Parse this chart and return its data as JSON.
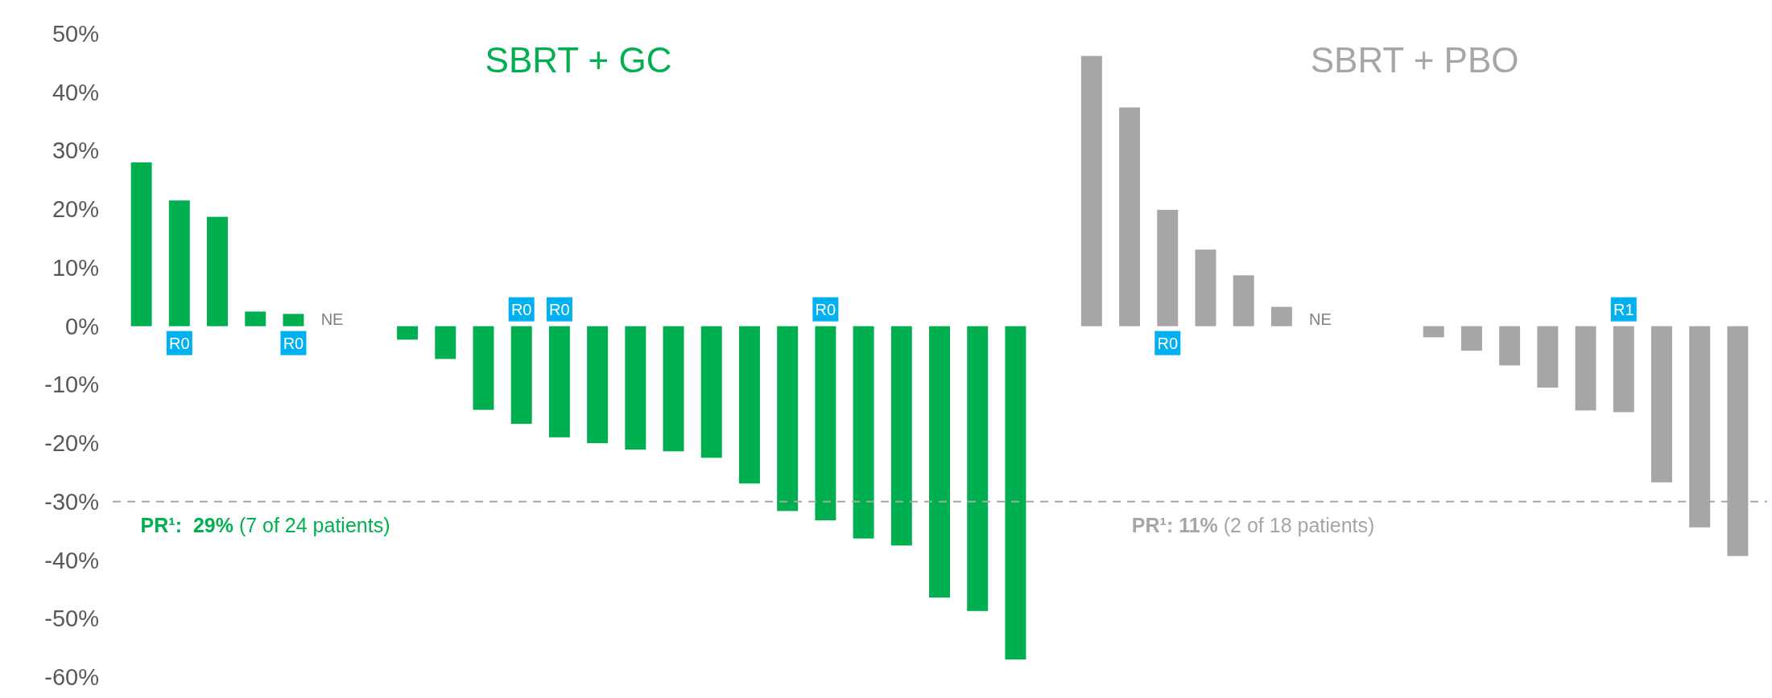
{
  "chart_data": {
    "type": "bar",
    "categories": [
      null,
      null,
      null,
      null,
      null,
      null,
      null,
      null,
      null,
      null,
      null,
      null,
      null,
      null,
      null,
      null,
      null,
      null,
      null,
      null,
      null,
      null,
      null,
      null,
      null,
      null,
      null,
      null,
      null,
      null,
      null,
      null,
      null,
      null,
      null,
      null,
      null,
      null,
      null,
      null,
      null,
      null,
      null
    ],
    "series": [
      {
        "name": "SBRT + GC",
        "color": "#00b050",
        "values": [
          28,
          21.5,
          18.7,
          2.5,
          2.1,
          null,
          null,
          -2.3,
          -5.6,
          -14.3,
          -16.7,
          -19,
          -20,
          -21.1,
          -21.4,
          -22.5,
          -26.9,
          -31.6,
          -33.2,
          -36.3,
          -37.5,
          -46.4,
          -48.7,
          -57,
          null,
          null,
          null,
          null,
          null,
          null,
          null,
          null,
          null,
          null,
          null,
          null,
          null,
          null,
          null,
          null,
          null,
          null,
          null
        ],
        "value_labels": [
          null,
          "R0",
          null,
          null,
          "R0",
          "NE",
          null,
          null,
          null,
          null,
          "R0",
          "R0",
          null,
          null,
          null,
          null,
          null,
          null,
          "R0",
          null,
          null,
          null,
          null,
          null,
          null,
          null,
          null,
          null,
          null,
          null,
          null,
          null,
          null,
          null,
          null,
          null,
          null,
          null,
          null,
          null,
          null,
          null,
          null
        ]
      },
      {
        "name": "SBRT + PBO",
        "color": "#a6a6a6",
        "values": [
          null,
          null,
          null,
          null,
          null,
          null,
          null,
          null,
          null,
          null,
          null,
          null,
          null,
          null,
          null,
          null,
          null,
          null,
          null,
          null,
          null,
          null,
          null,
          null,
          null,
          46.2,
          37.4,
          19.9,
          13.1,
          8.7,
          3.3,
          null,
          null,
          null,
          -1.9,
          -4.2,
          -6.7,
          -10.5,
          -14.4,
          -14.7,
          -26.7,
          -34.4,
          -39.3
        ],
        "value_labels": [
          null,
          null,
          null,
          null,
          null,
          null,
          null,
          null,
          null,
          null,
          null,
          null,
          null,
          null,
          null,
          null,
          null,
          null,
          null,
          null,
          null,
          null,
          null,
          null,
          null,
          null,
          null,
          "R0",
          null,
          null,
          null,
          "NE",
          null,
          null,
          null,
          null,
          null,
          null,
          null,
          "R1",
          null,
          null,
          null
        ]
      }
    ],
    "ylim": [
      -60,
      50
    ],
    "yticks": [
      {
        "value": 50,
        "label": "50%"
      },
      {
        "value": 40,
        "label": "40%"
      },
      {
        "value": 30,
        "label": "30%"
      },
      {
        "value": 20,
        "label": "20%"
      },
      {
        "value": 10,
        "label": "10%"
      },
      {
        "value": 0,
        "label": "0%"
      },
      {
        "value": -10,
        "label": "-10%"
      },
      {
        "value": -20,
        "label": "-20%"
      },
      {
        "value": -30,
        "label": "-30%"
      },
      {
        "value": -40,
        "label": "-40%"
      },
      {
        "value": -50,
        "label": "-50%"
      },
      {
        "value": -60,
        "label": "-60%"
      }
    ],
    "ref_lines": [
      {
        "axis": "y",
        "value": -30,
        "color": "#a6a6a6",
        "line_style": "dashed"
      }
    ],
    "annotations": [
      "PR¹:  29% (7 of 24 patients)",
      "PR¹: 11% (2 of 18 patients)"
    ],
    "grid": false
  }
}
